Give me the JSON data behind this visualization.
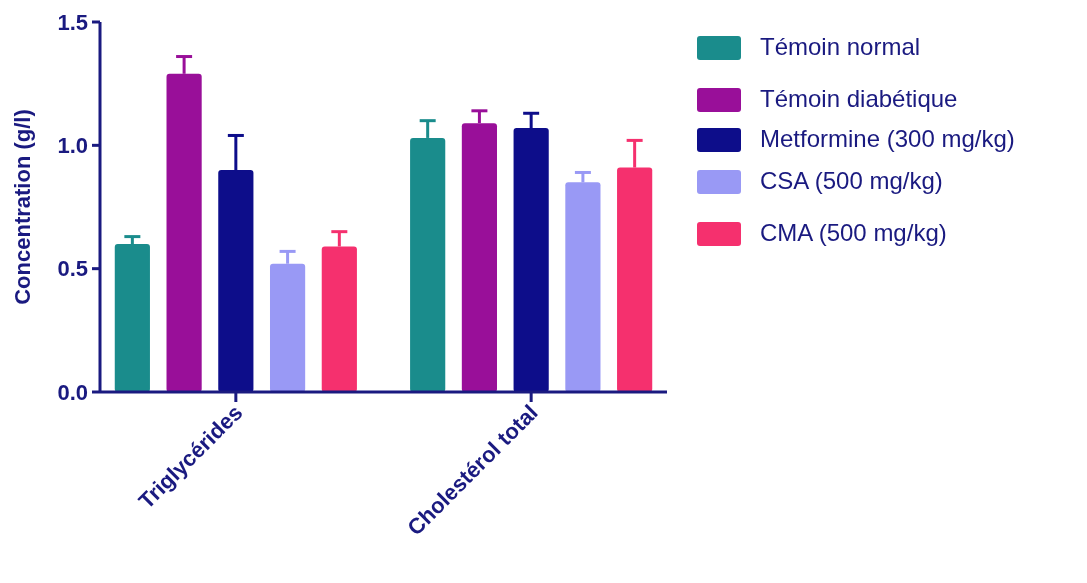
{
  "chart_data": {
    "type": "bar",
    "ylabel": "Concentration (g/l)",
    "categories": [
      "Triglycérides",
      "Cholestérol total"
    ],
    "ylim": [
      0,
      1.5
    ],
    "yticks": [
      {
        "value": 0,
        "label": "0.0"
      },
      0.5,
      {
        "value": 1,
        "label": "1.0"
      },
      1.5
    ],
    "legend": "right",
    "series": [
      {
        "name": "Témoin normal",
        "color": "#1a8c8c",
        "values": [
          0.6,
          1.03
        ],
        "errors": [
          0.03,
          0.07
        ]
      },
      {
        "name": "Témoin diabétique",
        "color": "#990f99",
        "values": [
          1.29,
          1.09
        ],
        "errors": [
          0.07,
          0.05
        ]
      },
      {
        "name": "Metformine (300 mg/kg)",
        "color": "#0d0d8a",
        "values": [
          0.9,
          1.07
        ],
        "errors": [
          0.14,
          0.06
        ]
      },
      {
        "name": "CSA (500 mg/kg)",
        "color": "#9999f5",
        "values": [
          0.52,
          0.85
        ],
        "errors": [
          0.05,
          0.04
        ]
      },
      {
        "name": "CMA (500 mg/kg)",
        "color": "#f5306e",
        "values": [
          0.59,
          0.91
        ],
        "errors": [
          0.06,
          0.11
        ]
      }
    ]
  }
}
